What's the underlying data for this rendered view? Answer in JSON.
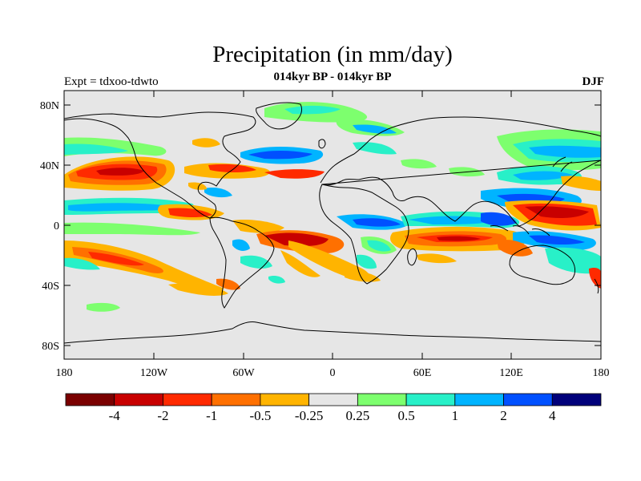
{
  "title": "Precipitation (in mm/day)",
  "subtitle": "014kyr BP - 014kyr BP",
  "left_label": "Expt = tdxoo-tdwto",
  "right_label": "DJF",
  "axes": {
    "lat_ticks": [
      "80N",
      "40N",
      "0",
      "40S",
      "80S"
    ],
    "lon_ticks": [
      "180",
      "120W",
      "60W",
      "0",
      "60E",
      "120E",
      "180"
    ]
  },
  "colorbar": {
    "colors": [
      "#7a0000",
      "#c80000",
      "#ff2a00",
      "#ff7000",
      "#ffb400",
      "#e6e6e6",
      "#7dff6e",
      "#28f0c8",
      "#00b4ff",
      "#0050ff",
      "#00007a"
    ],
    "labels": [
      "-4",
      "-2",
      "-1",
      "-0.5",
      "-0.25",
      "0.25",
      "0.5",
      "1",
      "2",
      "4"
    ]
  },
  "colors": {
    "background": "#e6e6e6",
    "coast": "#000000"
  }
}
